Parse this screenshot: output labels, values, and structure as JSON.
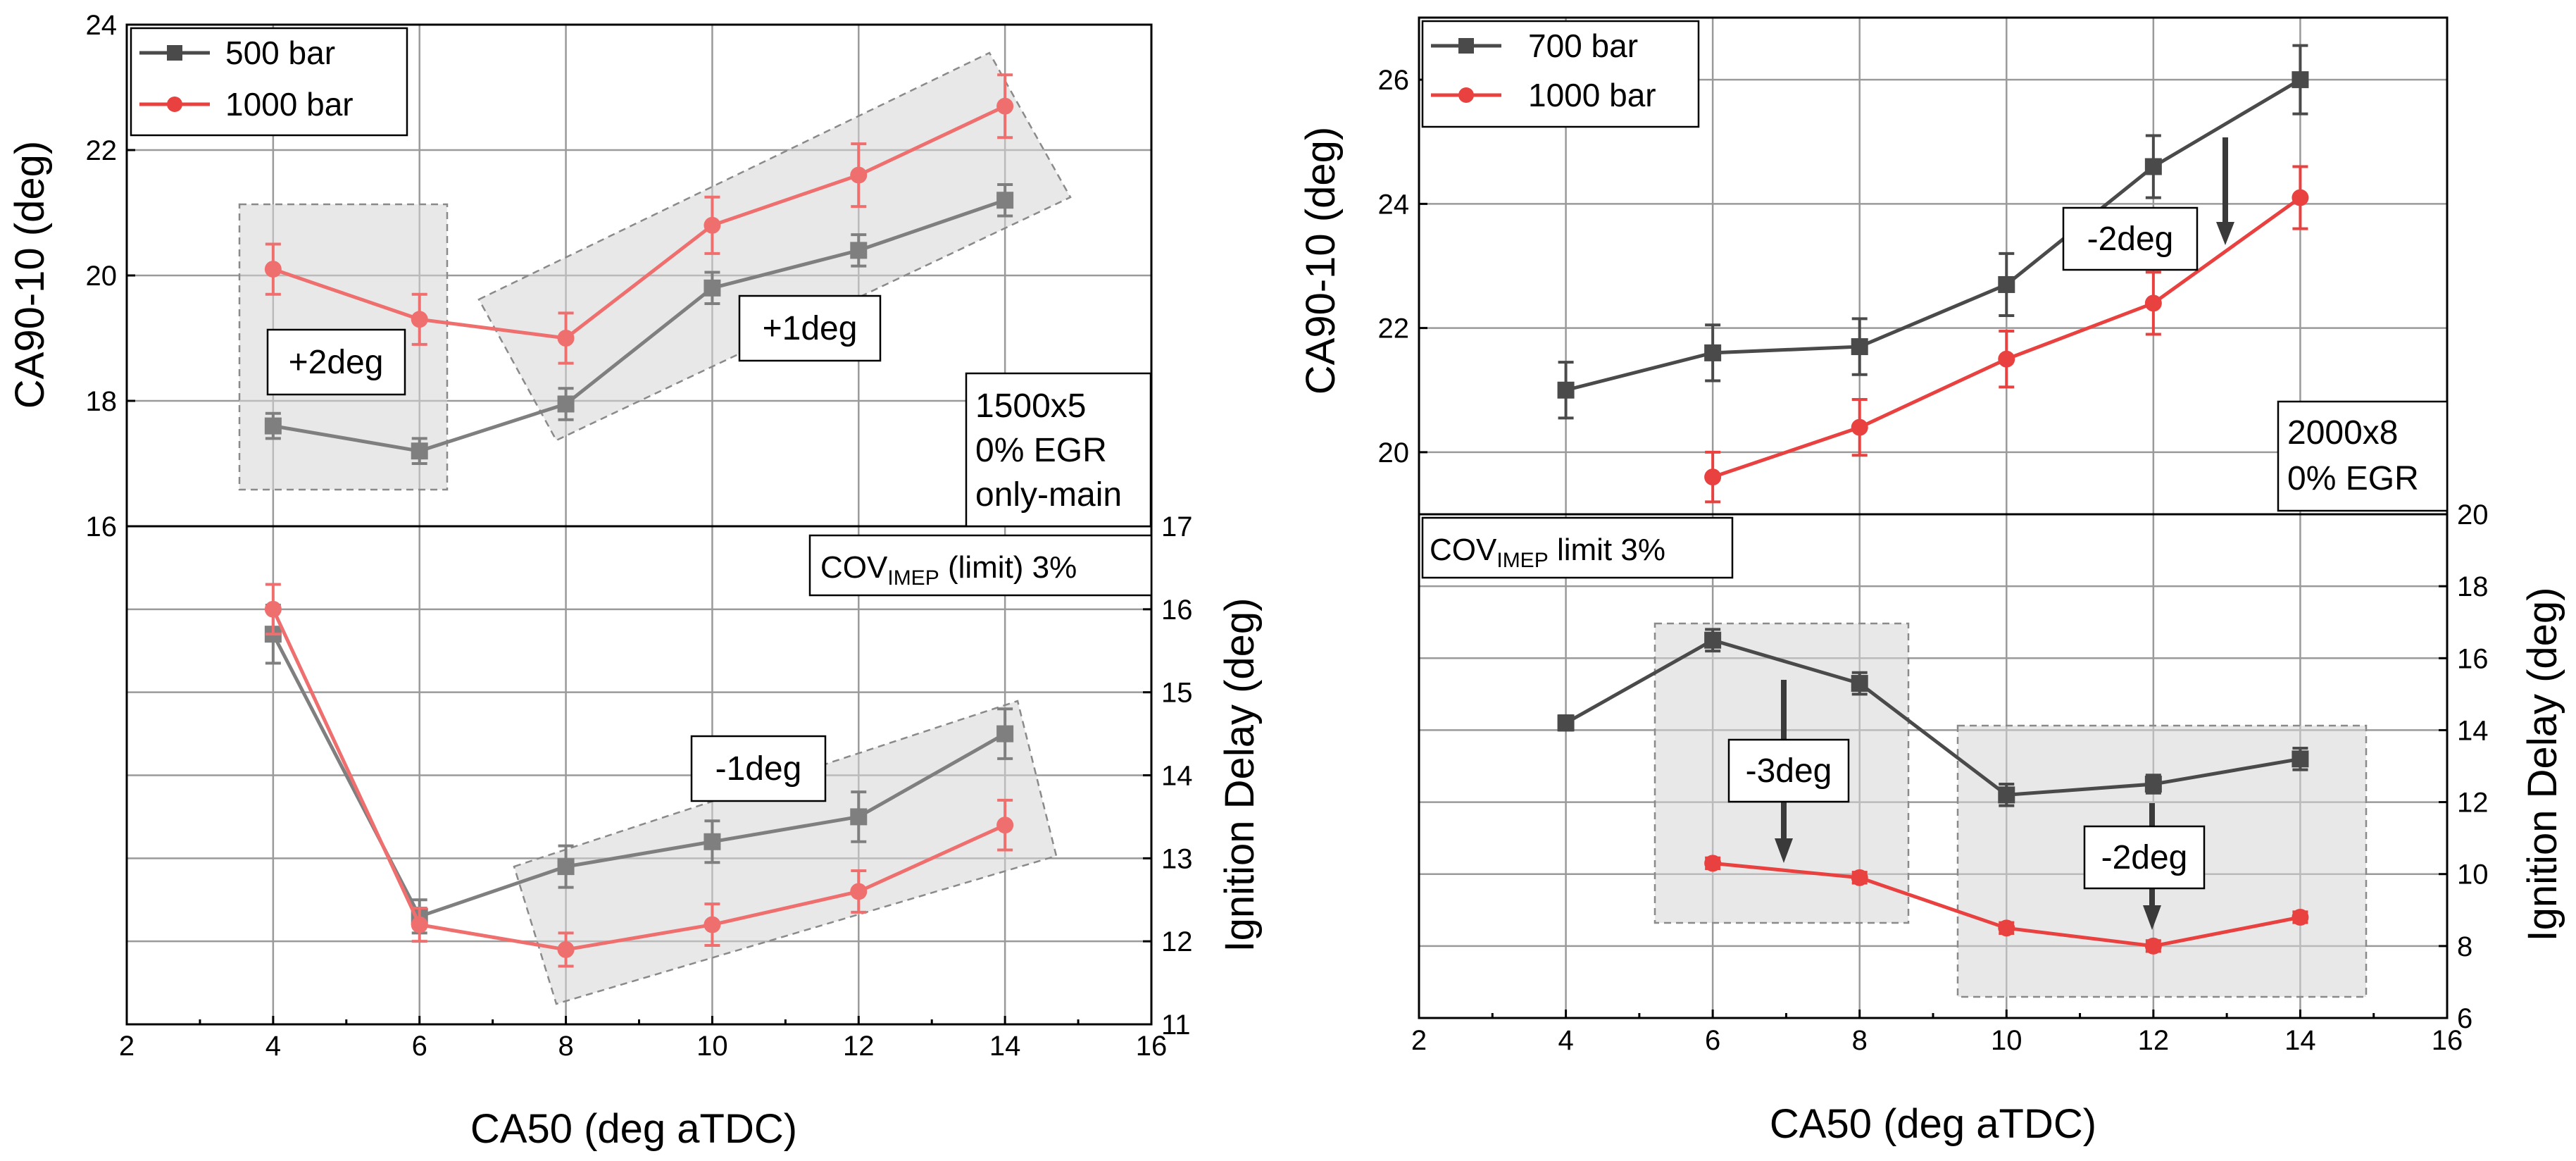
{
  "colors": {
    "series_dark": "#4a4a4a",
    "series_red": "#e8413f",
    "series_dark_faded": "#7f7f7f",
    "series_red_faded": "#ef6e6e"
  },
  "chart_data": [
    {
      "id": "left",
      "type": "line",
      "xlabel": "CA50 (deg aTDC)",
      "xlim": [
        2,
        16
      ],
      "xticks": [
        "2",
        "4",
        "6",
        "8",
        "10",
        "12",
        "14",
        "16"
      ],
      "top": {
        "ylabel": "CA90-10 (deg)",
        "ylim": [
          16,
          24
        ],
        "yticks": [
          "16",
          "18",
          "20",
          "22",
          "24"
        ],
        "series": [
          {
            "name": "500 bar",
            "marker": "square",
            "color_key": "series_dark",
            "x": [
              4,
              6,
              8,
              10,
              12,
              14
            ],
            "y": [
              17.6,
              17.2,
              17.95,
              19.8,
              20.4,
              21.2
            ],
            "err": [
              0.2,
              0.2,
              0.25,
              0.25,
              0.25,
              0.25
            ]
          },
          {
            "name": "1000 bar",
            "marker": "circle",
            "color_key": "series_red",
            "x": [
              4,
              6,
              8,
              10,
              12,
              14
            ],
            "y": [
              20.1,
              19.3,
              19.0,
              20.8,
              21.6,
              22.7
            ],
            "err": [
              0.4,
              0.4,
              0.4,
              0.45,
              0.5,
              0.5
            ]
          }
        ],
        "legend": [
          "500 bar",
          "1000 bar"
        ],
        "annotations": [
          "+2deg",
          "+1deg"
        ],
        "condition": [
          "1500x5",
          "0% EGR",
          "only-main"
        ]
      },
      "bottom": {
        "ylabel": "Ignition Delay (deg)",
        "ylim": [
          11,
          17
        ],
        "yticks": [
          "11",
          "12",
          "13",
          "14",
          "15",
          "16",
          "17"
        ],
        "series": [
          {
            "name": "500 bar",
            "color_key": "series_dark",
            "x": [
              4,
              6,
              8,
              10,
              12,
              14
            ],
            "y": [
              15.7,
              12.3,
              12.9,
              13.2,
              13.5,
              14.5
            ],
            "err": [
              0.35,
              0.2,
              0.25,
              0.25,
              0.3,
              0.3
            ]
          },
          {
            "name": "1000 bar",
            "color_key": "series_red",
            "x": [
              4,
              6,
              8,
              10,
              12,
              14
            ],
            "y": [
              16.0,
              12.2,
              11.9,
              12.2,
              12.6,
              13.4
            ],
            "err": [
              0.3,
              0.2,
              0.2,
              0.25,
              0.25,
              0.3
            ]
          }
        ],
        "annotations": [
          "-1deg"
        ],
        "cov_main": "COV",
        "cov_sub": "IMEP",
        "cov_tail": " (limit) 3%"
      }
    },
    {
      "id": "right",
      "type": "line",
      "xlabel": "CA50 (deg aTDC)",
      "xlim": [
        2,
        16
      ],
      "xticks": [
        "2",
        "4",
        "6",
        "8",
        "10",
        "12",
        "14",
        "16"
      ],
      "top": {
        "ylabel": "CA90-10 (deg)",
        "ylim": [
          19,
          27
        ],
        "yticks": [
          "20",
          "22",
          "24",
          "26"
        ],
        "series": [
          {
            "name": "700 bar",
            "marker": "square",
            "color_key": "series_dark",
            "x": [
              4,
              6,
              8,
              10,
              12,
              14
            ],
            "y": [
              21.0,
              21.6,
              21.7,
              22.7,
              24.6,
              26.0
            ],
            "err": [
              0.45,
              0.45,
              0.45,
              0.5,
              0.5,
              0.55
            ]
          },
          {
            "name": "1000 bar",
            "marker": "circle",
            "color_key": "series_red",
            "x": [
              6,
              8,
              10,
              12,
              14
            ],
            "y": [
              19.6,
              20.4,
              21.5,
              22.4,
              24.1
            ],
            "err": [
              0.4,
              0.45,
              0.45,
              0.5,
              0.5
            ]
          }
        ],
        "legend": [
          "700 bar",
          "1000 bar"
        ],
        "annotations": [
          "-2deg"
        ],
        "condition": [
          "2000x8",
          "0% EGR"
        ]
      },
      "bottom": {
        "ylabel": "Ignition Delay (deg)",
        "ylim": [
          6,
          20
        ],
        "yticks": [
          "6",
          "8",
          "10",
          "12",
          "14",
          "16",
          "18",
          "20"
        ],
        "series": [
          {
            "name": "700 bar",
            "color_key": "series_dark",
            "x": [
              4,
              6,
              8,
              10,
              12,
              14
            ],
            "y": [
              14.2,
              16.5,
              15.3,
              12.2,
              12.5,
              13.2
            ],
            "err": [
              0.2,
              0.3,
              0.3,
              0.3,
              0.25,
              0.3
            ]
          },
          {
            "name": "1000 bar",
            "color_key": "series_red",
            "x": [
              6,
              8,
              10,
              12,
              14
            ],
            "y": [
              10.3,
              9.9,
              8.5,
              8.0,
              8.8
            ],
            "err": [
              0.15,
              0.15,
              0.15,
              0.15,
              0.15
            ]
          }
        ],
        "annotations": [
          "-3deg",
          "-2deg"
        ],
        "cov_main": "COV",
        "cov_sub": "IMEP",
        "cov_tail": " limit 3%"
      }
    }
  ]
}
